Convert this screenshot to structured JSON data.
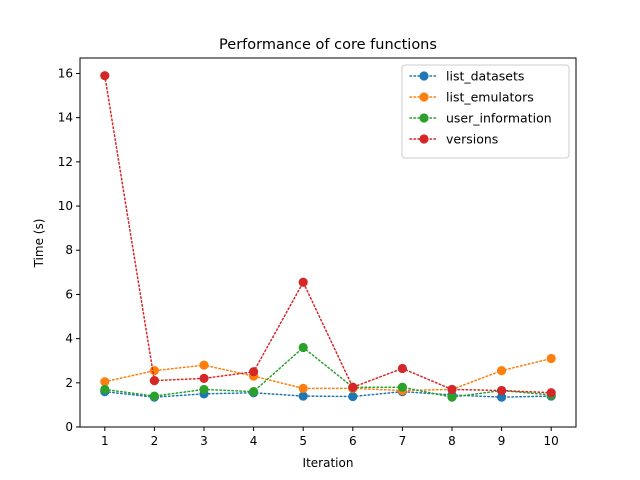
{
  "chart_data": {
    "type": "line",
    "title": "Performance of core functions",
    "xlabel": "Iteration",
    "ylabel": "Time (s)",
    "xlim": [
      0.5,
      10.5
    ],
    "ylim": [
      0,
      16.7
    ],
    "x_ticks": [
      1,
      2,
      3,
      4,
      5,
      6,
      7,
      8,
      9,
      10
    ],
    "y_ticks": [
      0,
      2,
      4,
      6,
      8,
      10,
      12,
      14,
      16
    ],
    "grid": false,
    "legend_position": "top-right",
    "line_style": "dotted",
    "marker": "circle",
    "x": [
      1,
      2,
      3,
      4,
      5,
      6,
      7,
      8,
      9,
      10
    ],
    "series": [
      {
        "name": "list_datasets",
        "color": "#1f77b4",
        "values": [
          1.6,
          1.35,
          1.5,
          1.55,
          1.4,
          1.38,
          1.6,
          1.45,
          1.35,
          1.4
        ]
      },
      {
        "name": "list_emulators",
        "color": "#ff7f0e",
        "values": [
          2.05,
          2.55,
          2.8,
          2.3,
          1.75,
          1.75,
          1.65,
          1.7,
          2.55,
          3.1
        ]
      },
      {
        "name": "user_information",
        "color": "#2ca02c",
        "values": [
          1.7,
          1.4,
          1.7,
          1.6,
          3.6,
          1.8,
          1.8,
          1.35,
          1.65,
          1.45
        ]
      },
      {
        "name": "versions",
        "color": "#d62728",
        "values": [
          15.9,
          2.1,
          2.2,
          2.5,
          6.55,
          1.8,
          2.65,
          1.7,
          1.65,
          1.55
        ]
      }
    ]
  }
}
